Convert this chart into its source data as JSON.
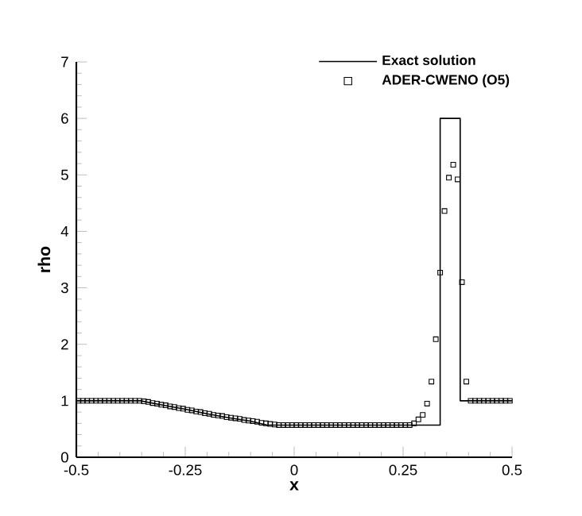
{
  "chart_data": {
    "type": "line",
    "xlabel": "x",
    "ylabel": "rho",
    "legend": "top right",
    "line_style": "solid",
    "xlim": [
      -0.5,
      0.5
    ],
    "ylim": [
      0,
      7
    ],
    "xticks": [
      -0.5,
      -0.25,
      0,
      0.25,
      0.5
    ],
    "yticks": [
      0,
      1,
      2,
      3,
      4,
      5,
      6,
      7
    ],
    "series": [
      {
        "name": "Exact solution",
        "color": "#000000",
        "marker": "none",
        "x": [
          -0.5,
          -0.353,
          -0.3,
          -0.25,
          -0.2,
          -0.15,
          -0.1,
          -0.062,
          0.335,
          0.335,
          0.381,
          0.381,
          0.5
        ],
        "values": [
          1,
          1,
          0.92,
          0.85,
          0.77,
          0.7,
          0.64,
          0.57,
          0.57,
          6,
          6,
          1,
          1
        ]
      },
      {
        "name": "ADER-CWENO (O5)",
        "type": "scatter",
        "color": "#000000",
        "marker": "square",
        "x": [
          -0.495,
          -0.485,
          -0.475,
          -0.465,
          -0.455,
          -0.445,
          -0.435,
          -0.425,
          -0.415,
          -0.405,
          -0.395,
          -0.385,
          -0.375,
          -0.365,
          -0.355,
          -0.345,
          -0.335,
          -0.325,
          -0.315,
          -0.305,
          -0.295,
          -0.285,
          -0.275,
          -0.265,
          -0.255,
          -0.245,
          -0.235,
          -0.225,
          -0.215,
          -0.205,
          -0.195,
          -0.185,
          -0.175,
          -0.165,
          -0.155,
          -0.145,
          -0.135,
          -0.125,
          -0.115,
          -0.105,
          -0.095,
          -0.085,
          -0.075,
          -0.065,
          -0.055,
          -0.045,
          -0.035,
          -0.025,
          -0.015,
          -0.005,
          0.005,
          0.015,
          0.025,
          0.035,
          0.045,
          0.055,
          0.065,
          0.075,
          0.085,
          0.095,
          0.105,
          0.115,
          0.125,
          0.135,
          0.145,
          0.155,
          0.165,
          0.175,
          0.185,
          0.195,
          0.205,
          0.215,
          0.225,
          0.235,
          0.245,
          0.255,
          0.265,
          0.275,
          0.285,
          0.295,
          0.305,
          0.315,
          0.325,
          0.335,
          0.345,
          0.355,
          0.365,
          0.375,
          0.385,
          0.395,
          0.405,
          0.415,
          0.425,
          0.435,
          0.445,
          0.455,
          0.465,
          0.475,
          0.485,
          0.495
        ],
        "values": [
          1,
          1,
          1,
          1,
          1,
          1,
          1,
          1,
          1,
          1,
          1,
          1,
          1,
          1,
          1,
          0.99,
          0.98,
          0.96,
          0.95,
          0.93,
          0.92,
          0.9,
          0.89,
          0.87,
          0.86,
          0.84,
          0.83,
          0.81,
          0.8,
          0.78,
          0.77,
          0.75,
          0.74,
          0.73,
          0.71,
          0.7,
          0.69,
          0.68,
          0.66,
          0.65,
          0.64,
          0.63,
          0.61,
          0.6,
          0.59,
          0.58,
          0.57,
          0.57,
          0.57,
          0.57,
          0.57,
          0.57,
          0.57,
          0.57,
          0.57,
          0.57,
          0.57,
          0.57,
          0.57,
          0.57,
          0.57,
          0.57,
          0.57,
          0.57,
          0.57,
          0.57,
          0.57,
          0.57,
          0.57,
          0.57,
          0.57,
          0.57,
          0.57,
          0.57,
          0.57,
          0.57,
          0.57,
          0.6,
          0.67,
          0.75,
          0.95,
          1.34,
          2.09,
          3.27,
          4.36,
          4.95,
          5.18,
          4.92,
          3.1,
          1.34,
          1,
          1,
          1,
          1,
          1,
          1,
          1,
          1,
          1,
          1
        ]
      }
    ]
  }
}
